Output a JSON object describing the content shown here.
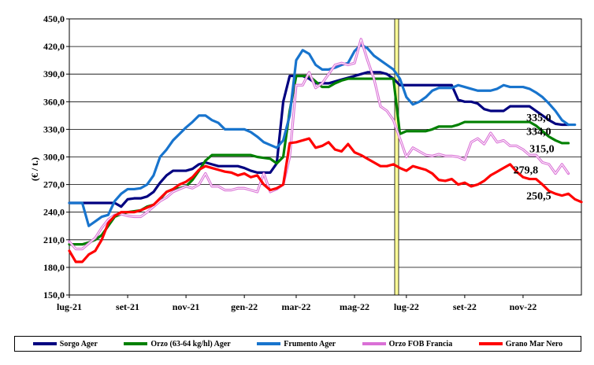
{
  "chart_data": {
    "type": "line",
    "title": "",
    "xlabel": "",
    "ylabel": "(€ / t.)",
    "ylim": [
      150,
      450
    ],
    "yticks": [
      "450,0",
      "420,0",
      "390,0",
      "360,0",
      "330,0",
      "300,0",
      "270,0",
      "240,0",
      "210,0",
      "180,0",
      "150,0"
    ],
    "xticks": [
      {
        "label": "lug-21",
        "x": 0
      },
      {
        "label": "set-21",
        "x": 9
      },
      {
        "label": "nov-21",
        "x": 18
      },
      {
        "label": "gen-22",
        "x": 27
      },
      {
        "label": "mar-22",
        "x": 35
      },
      {
        "label": "mag-22",
        "x": 44
      },
      {
        "label": "lug-22",
        "x": 52
      },
      {
        "label": "set-22",
        "x": 61
      },
      {
        "label": "nov-22",
        "x": 70
      }
    ],
    "x_max": 79,
    "marker_x": 50.5,
    "grid": true,
    "legend_position": "bottom",
    "series": [
      {
        "name": "Sorgo Ager",
        "color": "#000080",
        "values": [
          250,
          250,
          250,
          250,
          250,
          250,
          250,
          250,
          246,
          254,
          255,
          255,
          257,
          262,
          272,
          280,
          285,
          285,
          285,
          287,
          292,
          294,
          292,
          290,
          290,
          290,
          290,
          288,
          285,
          283,
          283,
          283,
          293,
          360,
          388,
          388,
          388,
          385,
          380,
          380,
          380,
          382,
          384,
          386,
          388,
          390,
          392,
          392,
          392,
          390,
          385,
          378,
          378,
          378,
          378,
          378,
          378,
          378,
          378,
          378,
          362,
          360,
          360,
          358,
          352,
          350,
          350,
          350,
          355,
          355,
          355,
          355,
          350,
          345,
          340,
          336,
          335,
          335
        ]
      },
      {
        "name": "Orzo (63-64 kg/hl) Ager",
        "color": "#008000",
        "values": [
          205,
          205,
          205,
          207,
          210,
          215,
          225,
          235,
          238,
          240,
          241,
          242,
          246,
          248,
          254,
          262,
          265,
          266,
          268,
          275,
          285,
          296,
          302,
          302,
          302,
          302,
          302,
          302,
          302,
          300,
          299,
          298,
          293,
          300,
          350,
          388,
          388,
          388,
          382,
          376,
          376,
          380,
          383,
          385,
          385,
          385,
          385,
          385,
          385,
          385,
          385,
          325,
          328,
          328,
          328,
          328,
          330,
          333,
          333,
          333,
          335,
          338,
          338,
          338,
          338,
          338,
          338,
          338,
          338,
          338,
          338,
          338,
          334,
          328,
          322,
          318,
          315,
          315
        ]
      },
      {
        "name": "Frumento Ager",
        "color": "#1874CD",
        "values": [
          250,
          250,
          250,
          225,
          230,
          235,
          237,
          252,
          260,
          265,
          265,
          266,
          270,
          280,
          300,
          308,
          318,
          325,
          332,
          338,
          345,
          345,
          340,
          337,
          330,
          330,
          330,
          330,
          327,
          322,
          316,
          313,
          310,
          318,
          345,
          405,
          416,
          412,
          400,
          395,
          395,
          397,
          400,
          402,
          415,
          422,
          418,
          410,
          405,
          400,
          395,
          385,
          365,
          357,
          360,
          365,
          372,
          375,
          375,
          375,
          378,
          376,
          374,
          372,
          372,
          372,
          374,
          378,
          376,
          376,
          376,
          374,
          370,
          365,
          358,
          350,
          340,
          335,
          335
        ]
      },
      {
        "name": "Orzo FOB Francia",
        "color": "#DA70D6",
        "values": [
          208,
          200,
          200,
          206,
          212,
          223,
          232,
          237,
          238,
          236,
          235,
          235,
          240,
          246,
          252,
          256,
          262,
          265,
          268,
          266,
          270,
          282,
          268,
          268,
          264,
          264,
          266,
          266,
          264,
          262,
          282,
          262,
          265,
          270,
          300,
          378,
          378,
          392,
          375,
          380,
          390,
          400,
          402,
          400,
          402,
          428,
          405,
          385,
          355,
          350,
          340,
          320,
          300,
          310,
          306,
          302,
          301,
          303,
          301,
          301,
          300,
          297,
          316,
          320,
          314,
          326,
          316,
          318,
          312,
          312,
          308,
          302,
          302,
          294,
          292,
          282,
          292,
          282
        ]
      },
      {
        "name": "Grano Mar Nero",
        "color": "#FF0000",
        "values": [
          198,
          186,
          186,
          194,
          198,
          210,
          228,
          236,
          240,
          240,
          240,
          242,
          245,
          248,
          255,
          262,
          265,
          270,
          273,
          278,
          286,
          290,
          288,
          286,
          284,
          283,
          280,
          282,
          278,
          280,
          270,
          264,
          266,
          270,
          315,
          316,
          318,
          320,
          310,
          312,
          316,
          308,
          306,
          314,
          305,
          302,
          298,
          294,
          290,
          290,
          292,
          288,
          285,
          290,
          288,
          286,
          282,
          275,
          274,
          276,
          270,
          272,
          268,
          270,
          274,
          280,
          284,
          288,
          292,
          284,
          278,
          276,
          276,
          270,
          263,
          260,
          258,
          260,
          254,
          251
        ]
      }
    ],
    "annotations": [
      {
        "text": "335,0",
        "x": 70.5,
        "y": 339
      },
      {
        "text": "334,0",
        "x": 70.5,
        "y": 324
      },
      {
        "text": "315,0",
        "x": 71.0,
        "y": 305
      },
      {
        "text": "279,8",
        "x": 68.5,
        "y": 282
      },
      {
        "text": "250,5",
        "x": 70.5,
        "y": 254
      }
    ]
  }
}
